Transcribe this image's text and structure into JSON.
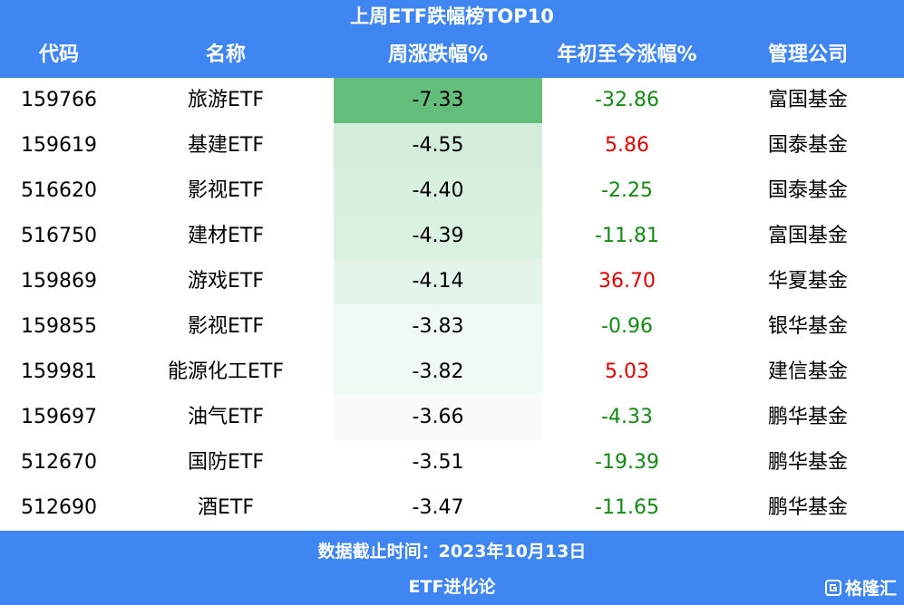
{
  "header": {
    "title": "上周ETF跌幅榜TOP10"
  },
  "table": {
    "columns": [
      "代码",
      "名称",
      "周涨跌幅%",
      "年初至今涨幅%",
      "管理公司"
    ],
    "rows": [
      [
        "159766",
        "旅游ETF",
        "-7.33",
        "-32.86",
        "富国基金"
      ],
      [
        "159619",
        "基建ETF",
        "-4.55",
        "5.86",
        "国泰基金"
      ],
      [
        "516620",
        "影视ETF",
        "-4.40",
        "-2.25",
        "国泰基金"
      ],
      [
        "516750",
        "建材ETF",
        "-4.39",
        "-11.81",
        "富国基金"
      ],
      [
        "159869",
        "游戏ETF",
        "-4.14",
        "36.70",
        "华夏基金"
      ],
      [
        "159855",
        "影视ETF",
        "-3.83",
        "-0.96",
        "银华基金"
      ],
      [
        "159981",
        "能源化工ETF",
        "-3.82",
        "5.03",
        "建信基金"
      ],
      [
        "159697",
        "油气ETF",
        "-3.66",
        "-4.33",
        "鹏华基金"
      ],
      [
        "512670",
        "国防ETF",
        "-3.51",
        "-19.39",
        "鹏华基金"
      ],
      [
        "512690",
        "酒ETF",
        "-3.47",
        "-11.65",
        "鹏华基金"
      ]
    ],
    "heat_color": "#63be7b",
    "positive_color": "#e00000",
    "negative_color": "#138a13"
  },
  "footer": {
    "date_note": "数据截止时间：2023年10月13日",
    "source": "ETF进化论"
  },
  "watermark": "格隆汇"
}
